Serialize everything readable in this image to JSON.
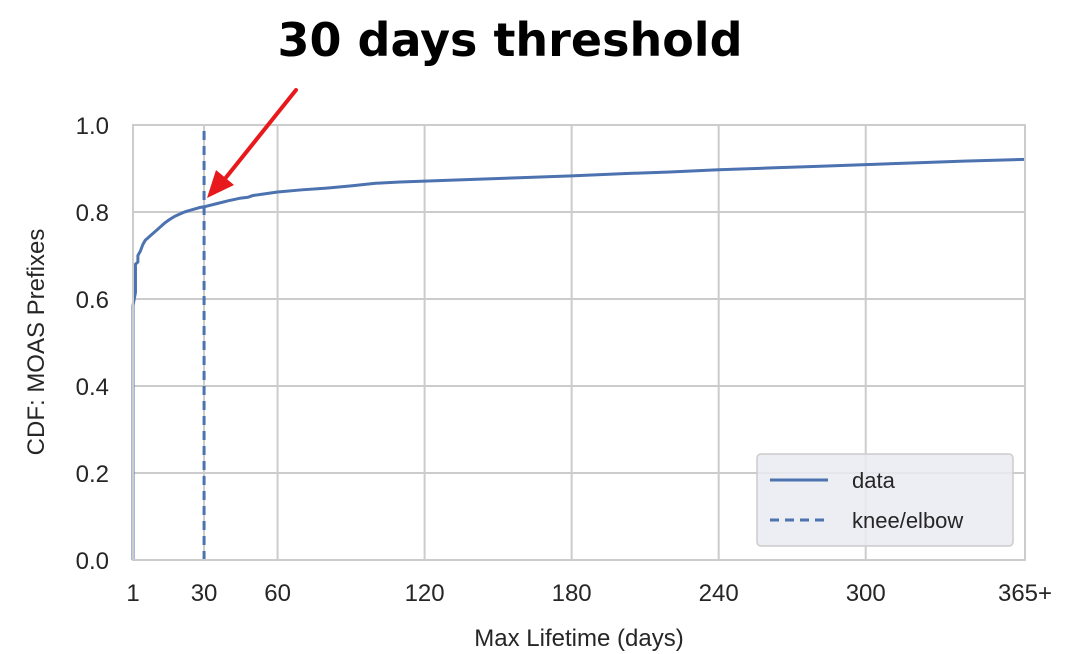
{
  "annotation": {
    "title": "30 days threshold",
    "arrow_color": "#e8191c"
  },
  "chart_data": {
    "type": "line",
    "title": "",
    "xlabel": "Max Lifetime (days)",
    "ylabel": "CDF: MOAS Prefixes",
    "xlim": [
      1,
      365
    ],
    "ylim": [
      0.0,
      1.0
    ],
    "grid": true,
    "x_ticks": [
      1,
      30,
      60,
      120,
      180,
      240,
      300,
      365
    ],
    "x_tick_labels": [
      "1",
      "30",
      "60",
      "120",
      "180",
      "240",
      "300",
      "365+"
    ],
    "y_ticks": [
      0.0,
      0.2,
      0.4,
      0.6,
      0.8,
      1.0
    ],
    "y_tick_labels": [
      "0.0",
      "0.2",
      "0.4",
      "0.6",
      "0.8",
      "1.0"
    ],
    "legend_position": "lower-right",
    "series": [
      {
        "name": "data",
        "style": "solid",
        "color": "#4c72b0",
        "x": [
          1,
          1,
          2,
          2,
          3,
          3,
          4,
          5,
          6,
          7,
          8,
          10,
          12,
          14,
          16,
          18,
          20,
          22,
          25,
          28,
          30,
          35,
          40,
          45,
          48,
          50,
          55,
          60,
          70,
          80,
          90,
          100,
          110,
          120,
          140,
          160,
          180,
          200,
          220,
          240,
          260,
          280,
          300,
          320,
          340,
          365
        ],
        "y": [
          0.0,
          0.585,
          0.615,
          0.68,
          0.685,
          0.7,
          0.71,
          0.725,
          0.735,
          0.74,
          0.745,
          0.755,
          0.765,
          0.775,
          0.783,
          0.79,
          0.795,
          0.8,
          0.805,
          0.81,
          0.812,
          0.819,
          0.826,
          0.832,
          0.834,
          0.838,
          0.842,
          0.846,
          0.851,
          0.855,
          0.86,
          0.866,
          0.869,
          0.871,
          0.875,
          0.879,
          0.883,
          0.888,
          0.892,
          0.897,
          0.901,
          0.905,
          0.909,
          0.913,
          0.917,
          0.921
        ]
      },
      {
        "name": "knee/elbow",
        "style": "dashed",
        "color": "#4c72b0",
        "x": [
          30,
          30
        ],
        "y": [
          0.0,
          1.0
        ]
      }
    ],
    "background": "#ffffff",
    "grid_color": "#cccccc"
  }
}
